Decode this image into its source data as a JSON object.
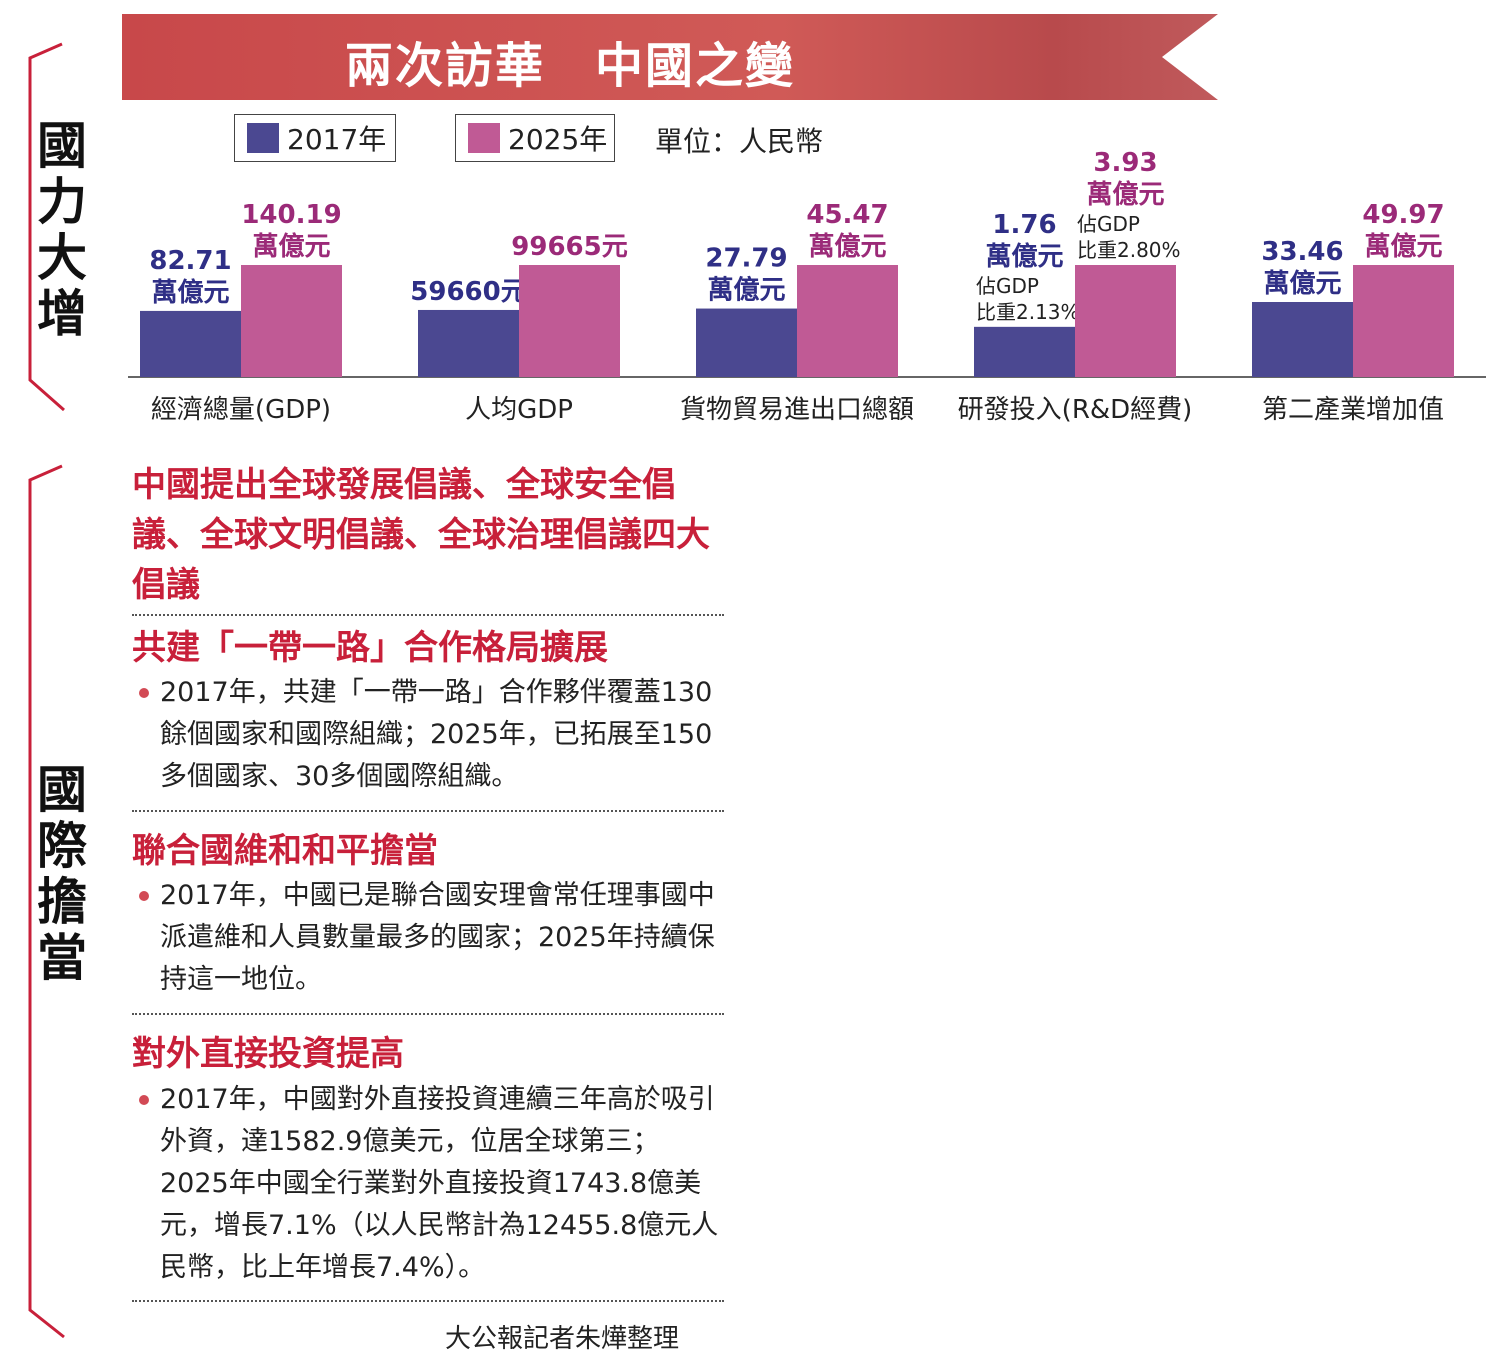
{
  "banner": {
    "title": "兩次訪華　中國之變"
  },
  "side_titles": {
    "top": [
      "國",
      "力",
      "大",
      "增"
    ],
    "bottom": [
      "國",
      "際",
      "擔",
      "當"
    ]
  },
  "legend": {
    "items": [
      {
        "label": "2017年",
        "color": "#4b4891"
      },
      {
        "label": "2025年",
        "color": "#c05a95"
      }
    ],
    "unit": "單位：人民幣"
  },
  "chart_data": {
    "type": "bar",
    "categories": [
      "經濟總量(GDP)",
      "人均GDP",
      "貨物貿易進出口總額",
      "研發投入(R&D經費)",
      "第二產業增加值"
    ],
    "series": [
      {
        "name": "2017年",
        "color": "#4b4891",
        "values": [
          82.71,
          59660,
          27.79,
          1.76,
          33.46
        ],
        "labels": [
          [
            "82.71",
            "萬億元"
          ],
          [
            "59660元"
          ],
          [
            "27.79",
            "萬億元"
          ],
          [
            "1.76",
            "萬億元"
          ],
          [
            "33.46",
            "萬億元"
          ]
        ],
        "notes": [
          "",
          "",
          "",
          "佔GDP\n比重2.13%",
          ""
        ]
      },
      {
        "name": "2025年",
        "color": "#c05a95",
        "values": [
          140.19,
          99665,
          45.47,
          3.93,
          49.97
        ],
        "labels": [
          [
            "140.19",
            "萬億元"
          ],
          [
            "99665元"
          ],
          [
            "45.47",
            "萬億元"
          ],
          [
            "3.93",
            "萬億元"
          ],
          [
            "49.97",
            "萬億元"
          ]
        ],
        "notes": [
          "",
          "",
          "",
          "佔GDP\n比重2.80%",
          ""
        ]
      }
    ],
    "legend_position": "top-left"
  },
  "international": {
    "headline": "中國提出全球發展倡議、全球安全倡議、全球文明倡議、全球治理倡議四大倡議",
    "sections": [
      {
        "title": "共建「一帶一路」合作格局擴展",
        "text": "2017年，共建「一帶一路」合作夥伴覆蓋130餘個國家和國際組織；2025年，已拓展至150多個國家、30多個國際組織。"
      },
      {
        "title": "聯合國維和和平擔當",
        "text": "2017年，中國已是聯合國安理會常任理事國中派遣維和人員數量最多的國家；2025年持續保持這一地位。"
      },
      {
        "title": "對外直接投資提高",
        "text": "2017年，中國對外直接投資連續三年高於吸引外資，達1582.9億美元，位居全球第三；2025年中國全行業對外直接投資1743.8億美元，增長7.1%（以人民幣計為12455.8億元人民幣，比上年增長7.4%）。"
      }
    ]
  },
  "credit": "大公報記者朱燁整理"
}
